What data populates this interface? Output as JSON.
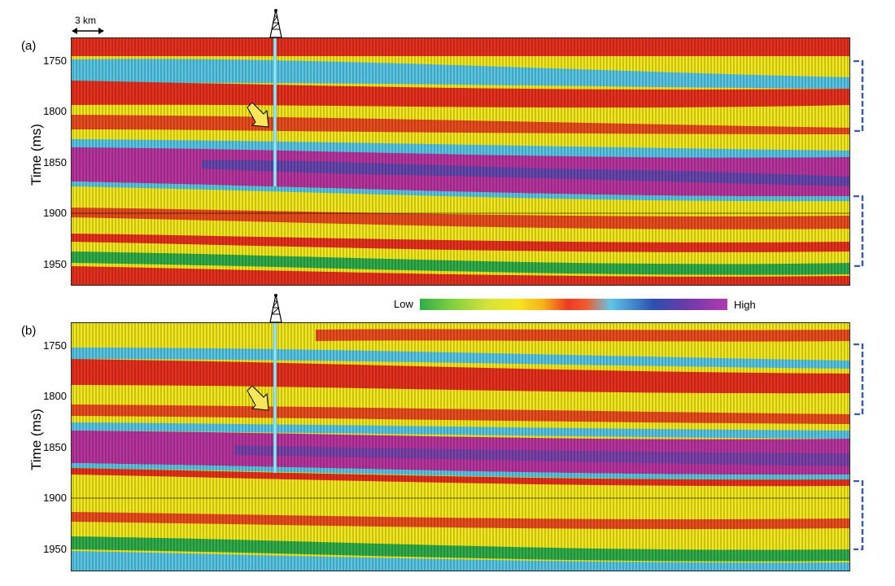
{
  "scale_bar": {
    "label": "3 km"
  },
  "legend": {
    "low": "Low",
    "high": "High"
  },
  "panels": [
    {
      "label": "(a)",
      "ylabel": "Time (ms)",
      "ticks": [
        "1750",
        "1800",
        "1850",
        "1900",
        "1950"
      ]
    },
    {
      "label": "(b)",
      "ylabel": "Time (ms)",
      "ticks": [
        "1750",
        "1800",
        "1850",
        "1900",
        "1950"
      ]
    }
  ],
  "colors": {
    "green": "#2fae4a",
    "yellow": "#f4e91c",
    "red": "#e8301e",
    "cyan": "#58c7e6",
    "blue": "#2e54b8",
    "magenta": "#b8359f",
    "bracket": "#3a5ab8",
    "arrow": "#f5e65a"
  },
  "icons": [
    "drilling-rig-icon",
    "arrow-icon",
    "bracket-icon"
  ]
}
